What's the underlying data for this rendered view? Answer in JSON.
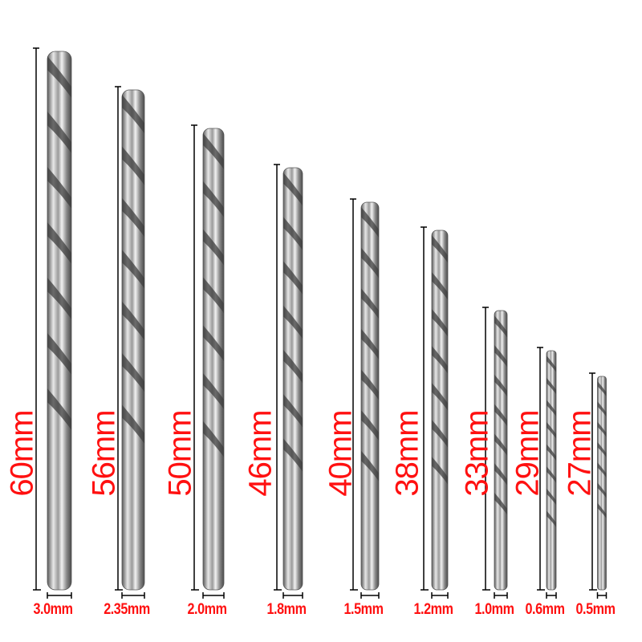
{
  "bits": [
    {
      "length": "60mm",
      "diameter": "3.0mm"
    },
    {
      "length": "56mm",
      "diameter": "2.35mm"
    },
    {
      "length": "50mm",
      "diameter": "2.0mm"
    },
    {
      "length": "46mm",
      "diameter": "1.8mm"
    },
    {
      "length": "40mm",
      "diameter": "1.5mm"
    },
    {
      "length": "38mm",
      "diameter": "1.2mm"
    },
    {
      "length": "33mm",
      "diameter": "1.0mm"
    },
    {
      "length": "29mm",
      "diameter": "0.6mm"
    },
    {
      "length": "27mm",
      "diameter": "0.5mm"
    }
  ],
  "colors": {
    "label": "#ff1010",
    "dimension_line": "#000000",
    "steel": "#b8b8b8"
  }
}
